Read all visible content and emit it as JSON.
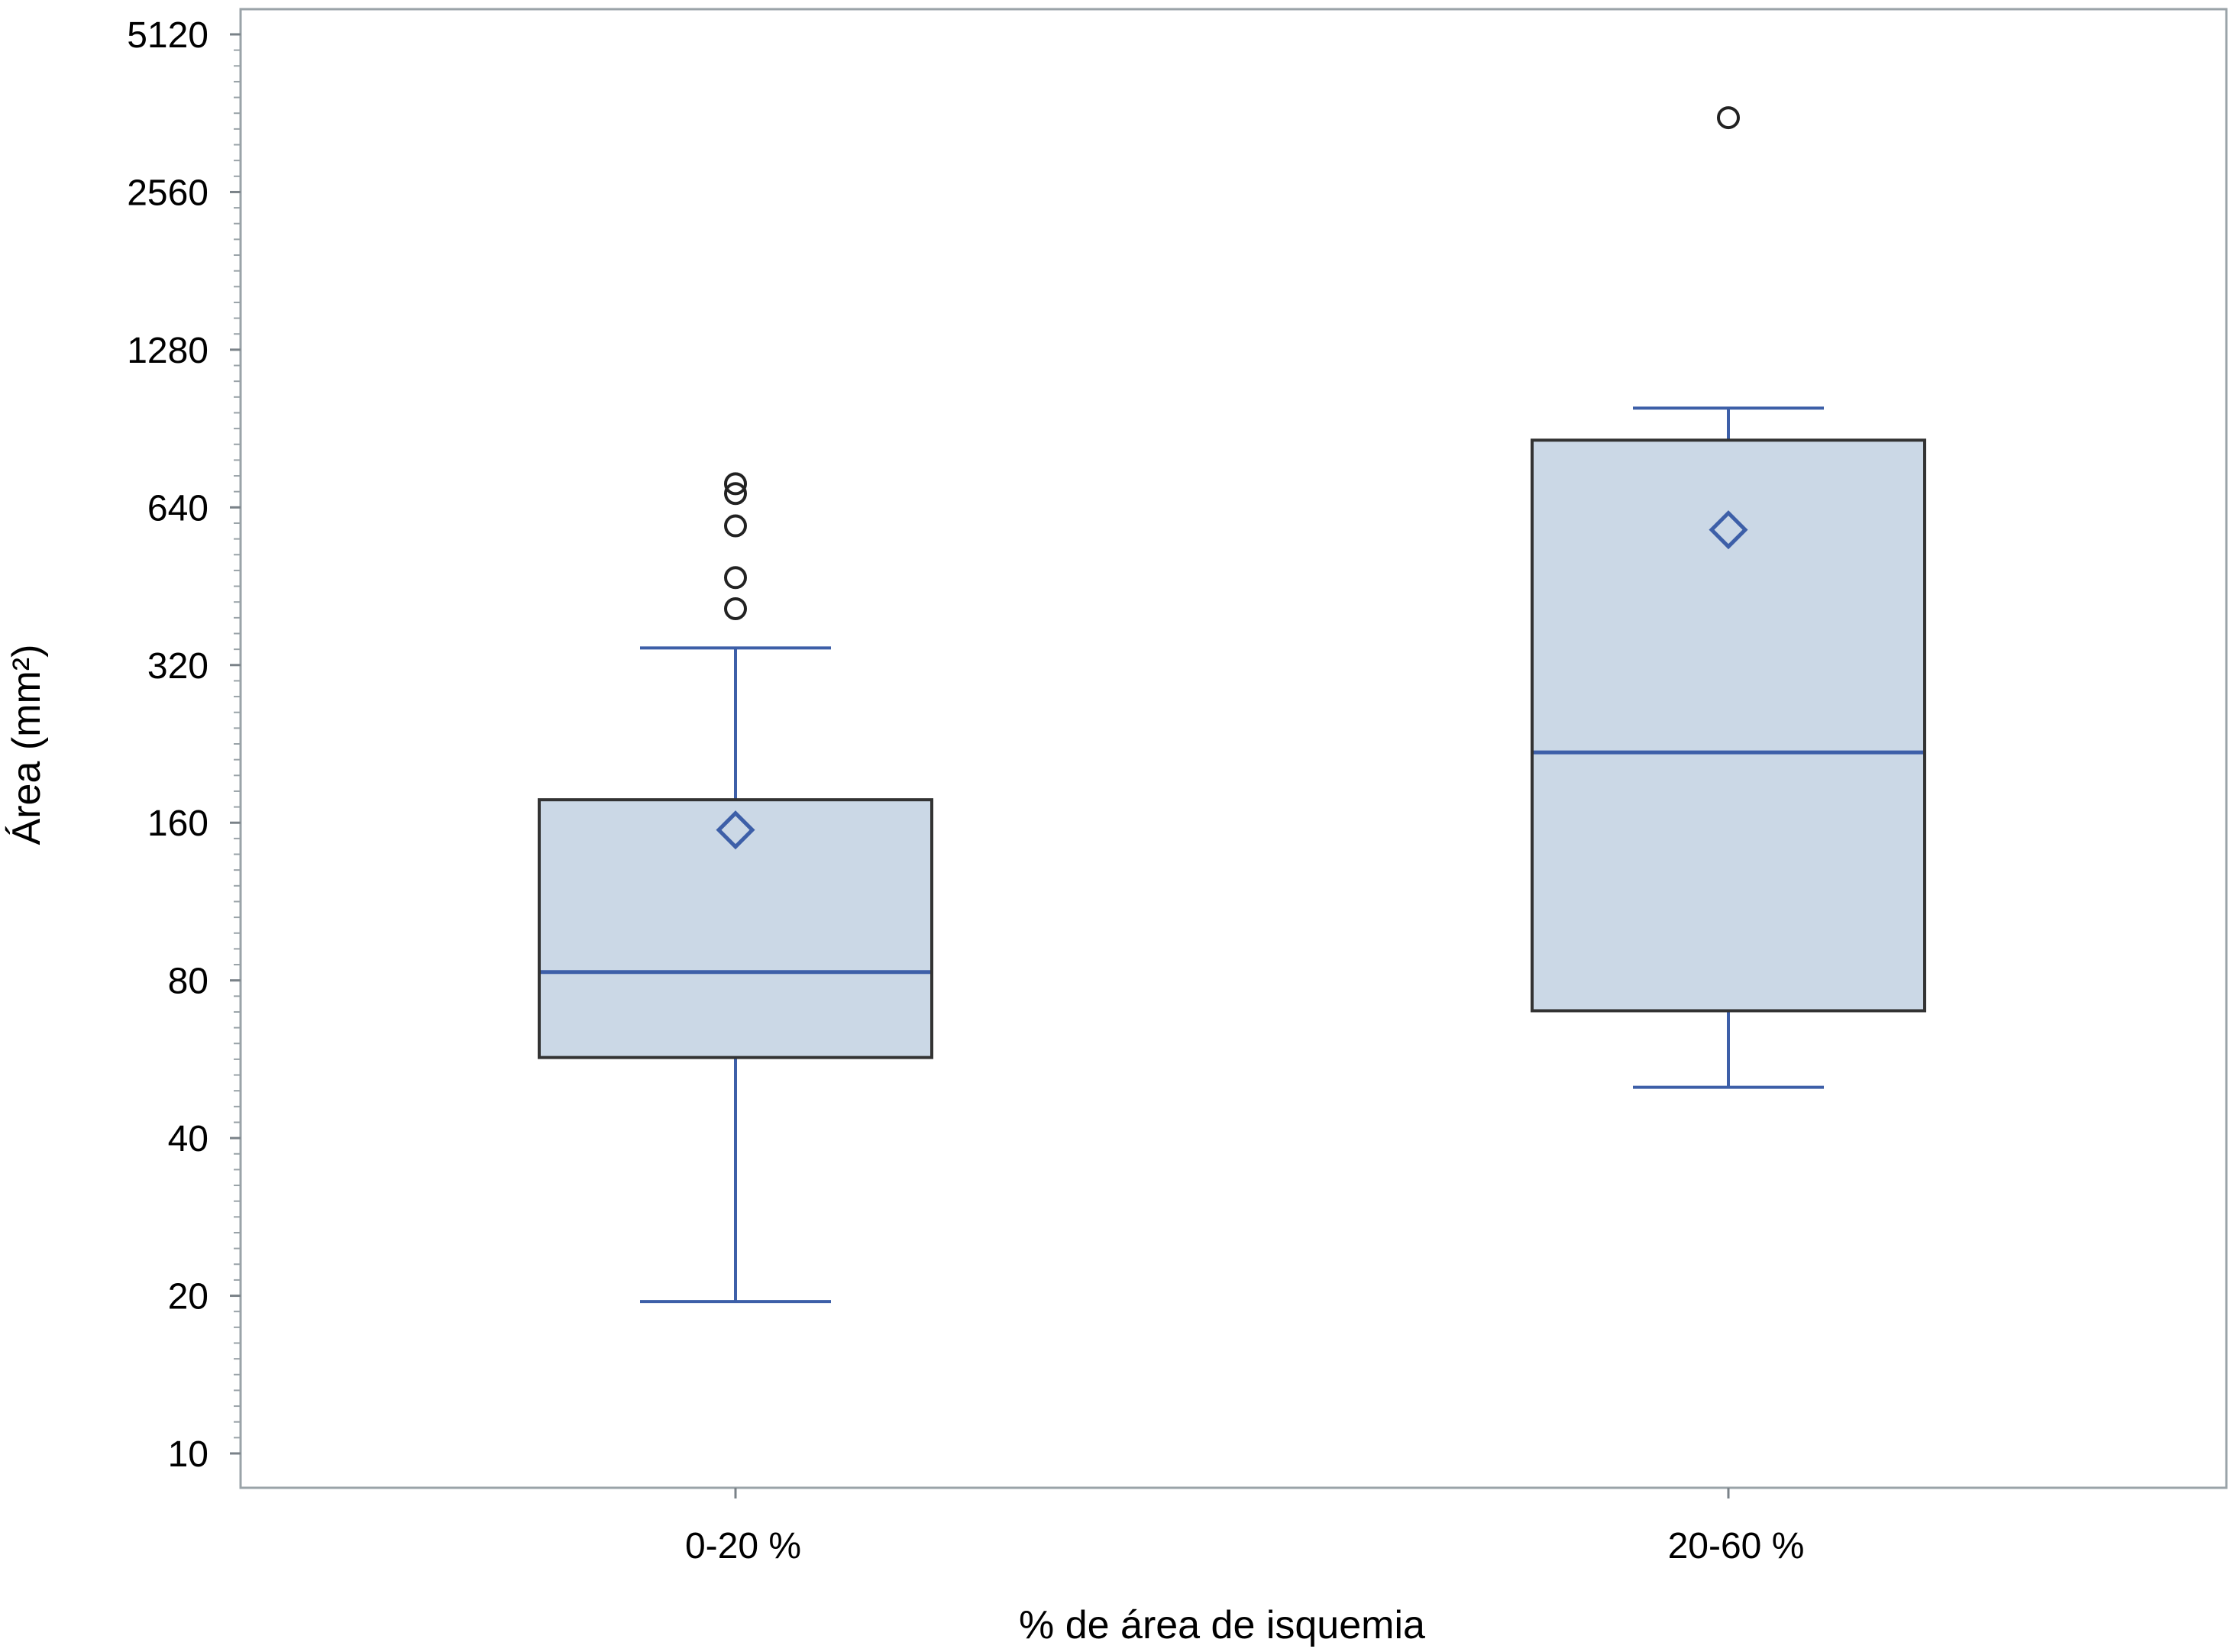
{
  "chart_data": {
    "type": "boxplot",
    "xlabel": "% de área de isquemia",
    "ylabel": "Área (mm²)",
    "y_scale": "log2",
    "ylim": [
      9,
      5300
    ],
    "y_ticks": [
      10,
      20,
      40,
      80,
      160,
      320,
      640,
      1280,
      2560,
      5120
    ],
    "y_tick_labels": [
      "10",
      "20",
      "40",
      "80",
      "160",
      "320",
      "640",
      "1280",
      "2560",
      "5120"
    ],
    "grid": false,
    "categories": [
      "0-20  %",
      "20-60 %"
    ],
    "boxes": [
      {
        "category": "0-20  %",
        "whisker_low": 19.5,
        "q1": 57,
        "median": 83,
        "q3": 177,
        "whisker_high": 345,
        "mean": 155,
        "outliers": [
          410,
          470,
          590,
          680,
          710
        ]
      },
      {
        "category": "20-60 %",
        "whisker_low": 50,
        "q1": 70,
        "median": 218,
        "q3": 860,
        "whisker_high": 990,
        "mean": 580,
        "outliers": [
          3550
        ]
      }
    ],
    "colors": {
      "box_fill": "#cbd8e6",
      "box_border": "#333333",
      "whisker": "#3d5fa8",
      "median": "#3d5fa8",
      "mean_marker": "#3d5fa8",
      "outlier": "#222222",
      "frame": "#9aa3a8"
    }
  }
}
